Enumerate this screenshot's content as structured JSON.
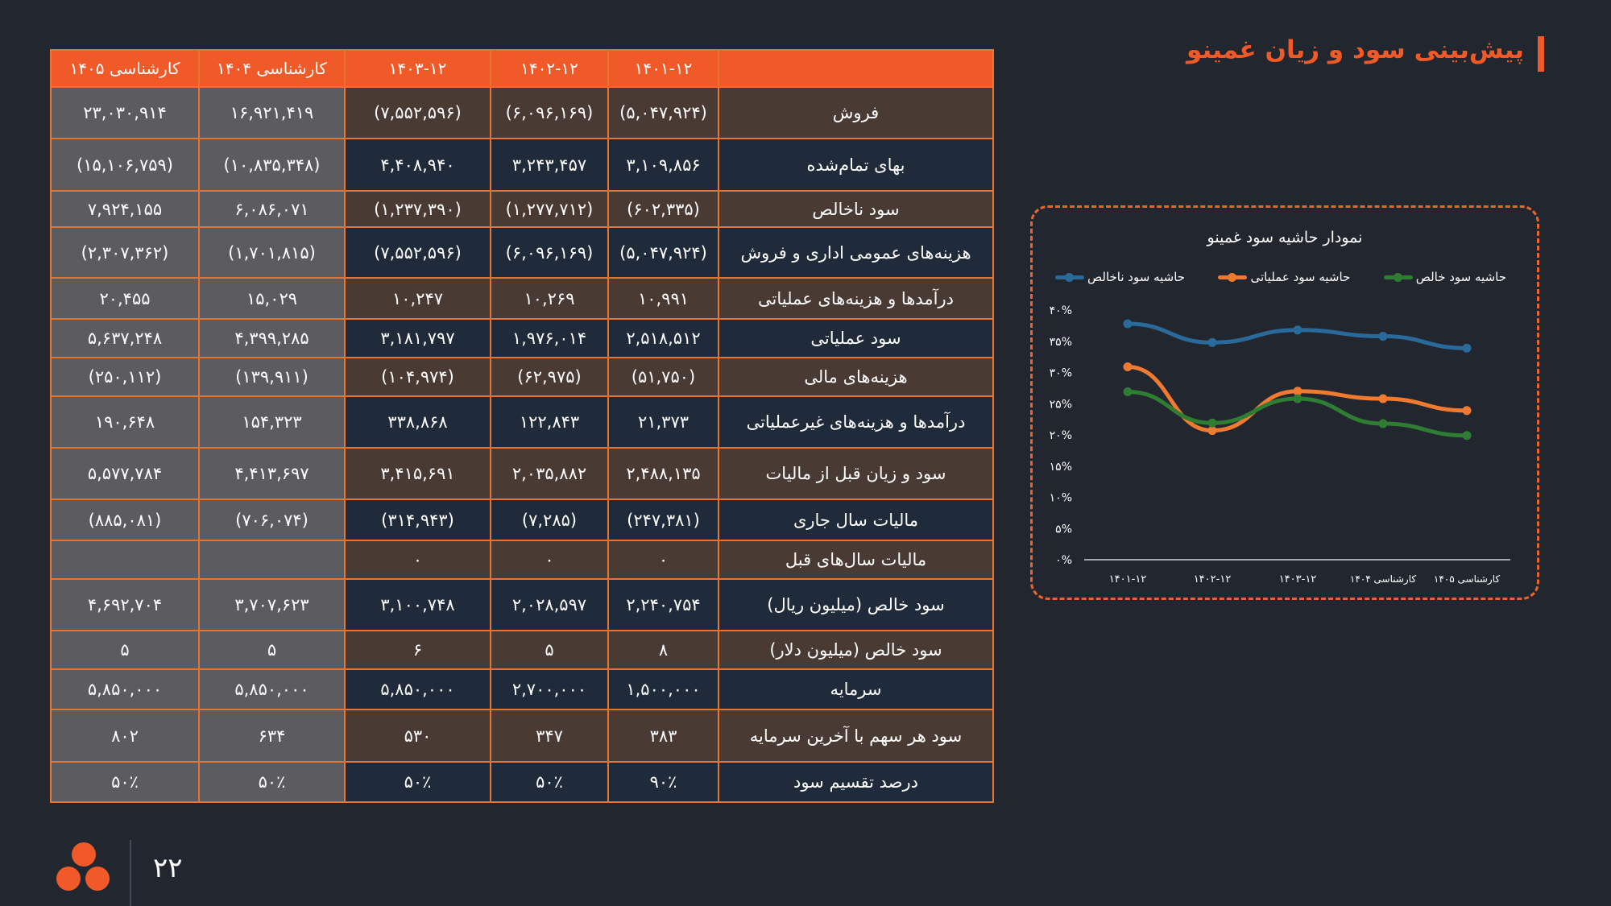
{
  "title": "پیش‌بینی سود و زیان غمینو",
  "table": {
    "headers": [
      "",
      "۱۴۰۱-۱۲",
      "۱۴۰۲-۱۲",
      "۱۴۰۳-۱۲",
      "کارشناسی ۱۴۰۴",
      "کارشناسی ۱۴۰۵"
    ],
    "rows": [
      {
        "label": "فروش",
        "values": [
          "(۵,۰۴۷,۹۲۴)",
          "(۶,۰۹۶,۱۶۹)",
          "(۷,۵۵۲,۵۹۶)",
          "۱۶,۹۲۱,۴۱۹",
          "۲۳,۰۳۰,۹۱۴"
        ]
      },
      {
        "label": "بهای تمام‌شده",
        "values": [
          "۳,۱۰۹,۸۵۶",
          "۳,۲۴۳,۴۵۷",
          "۴,۴۰۸,۹۴۰",
          "(۱۰,۸۳۵,۳۴۸)",
          "(۱۵,۱۰۶,۷۵۹)"
        ]
      },
      {
        "label": "سود ناخالص",
        "values": [
          "(۶۰۲,۳۳۵)",
          "(۱,۲۷۷,۷۱۲)",
          "(۱,۲۳۷,۳۹۰)",
          "۶,۰۸۶,۰۷۱",
          "۷,۹۲۴,۱۵۵"
        ]
      },
      {
        "label": "هزینه‌های عمومی اداری و فروش",
        "values": [
          "(۵,۰۴۷,۹۲۴)",
          "(۶,۰۹۶,۱۶۹)",
          "(۷,۵۵۲,۵۹۶)",
          "(۱,۷۰۱,۸۱۵)",
          "(۲,۳۰۷,۳۶۲)"
        ]
      },
      {
        "label": "درآمدها و هزینه‌های عملیاتی",
        "values": [
          "۱۰,۹۹۱",
          "۱۰,۲۶۹",
          "۱۰,۲۴۷",
          "۱۵,۰۲۹",
          "۲۰,۴۵۵"
        ]
      },
      {
        "label": "سود عملیاتی",
        "values": [
          "۲,۵۱۸,۵۱۲",
          "۱,۹۷۶,۰۱۴",
          "۳,۱۸۱,۷۹۷",
          "۴,۳۹۹,۲۸۵",
          "۵,۶۳۷,۲۴۸"
        ]
      },
      {
        "label": "هزینه‌های مالی",
        "values": [
          "(۵۱,۷۵۰)",
          "(۶۲,۹۷۵)",
          "(۱۰۴,۹۷۴)",
          "(۱۳۹,۹۱۱)",
          "(۲۵۰,۱۱۲)"
        ]
      },
      {
        "label": "درآمدها و هزینه‌های غیرعملیاتی",
        "values": [
          "۲۱,۳۷۳",
          "۱۲۲,۸۴۳",
          "۳۳۸,۸۶۸",
          "۱۵۴,۳۲۳",
          "۱۹۰,۶۴۸"
        ]
      },
      {
        "label": "سود و زیان قبل از مالیات",
        "values": [
          "۲,۴۸۸,۱۳۵",
          "۲,۰۳۵,۸۸۲",
          "۳,۴۱۵,۶۹۱",
          "۴,۴۱۳,۶۹۷",
          "۵,۵۷۷,۷۸۴"
        ]
      },
      {
        "label": "مالیات سال جاری",
        "values": [
          "(۲۴۷,۳۸۱)",
          "(۷,۲۸۵)",
          "(۳۱۴,۹۴۳)",
          "(۷۰۶,۰۷۴)",
          "(۸۸۵,۰۸۱)"
        ]
      },
      {
        "label": "مالیات سال‌های قبل",
        "values": [
          "۰",
          "۰",
          "۰",
          "",
          ""
        ]
      },
      {
        "label": "سود خالص (میلیون ریال)",
        "values": [
          "۲,۲۴۰,۷۵۴",
          "۲,۰۲۸,۵۹۷",
          "۳,۱۰۰,۷۴۸",
          "۳,۷۰۷,۶۲۳",
          "۴,۶۹۲,۷۰۴"
        ]
      },
      {
        "label": "سود خالص (میلیون دلار)",
        "values": [
          "۸",
          "۵",
          "۶",
          "۵",
          "۵"
        ]
      },
      {
        "label": "سرمایه",
        "values": [
          "۱,۵۰۰,۰۰۰",
          "۲,۷۰۰,۰۰۰",
          "۵,۸۵۰,۰۰۰",
          "۵,۸۵۰,۰۰۰",
          "۵,۸۵۰,۰۰۰"
        ]
      },
      {
        "label": "سود هر سهم با آخرین سرمایه",
        "values": [
          "۳۸۳",
          "۳۴۷",
          "۵۳۰",
          "۶۳۴",
          "۸۰۲"
        ]
      },
      {
        "label": "درصد تقسیم سود",
        "values": [
          "۹۰٪",
          "۵۰٪",
          "۵۰٪",
          "۵۰٪",
          "۵۰٪"
        ]
      }
    ]
  },
  "colors": {
    "accent": "#f05a28",
    "background": "#22262f",
    "row_brown": "#4a3a34",
    "row_navy": "#1f2a3a",
    "forecast_gray": "#5c5c60"
  },
  "chart_data": {
    "type": "line",
    "title": "نمودار حاشیه سود غمینو",
    "categories": [
      "۱۴۰۱-۱۲",
      "۱۴۰۲-۱۲",
      "۱۴۰۳-۱۲",
      "کارشناسی ۱۴۰۴",
      "کارشناسی ۱۴۰۵"
    ],
    "ytick_labels": [
      "۰%",
      "۵%",
      "۱۰%",
      "۱۵%",
      "۲۰%",
      "۲۵%",
      "۳۰%",
      "۳۵%",
      "۴۰%"
    ],
    "ylim": [
      0,
      40
    ],
    "grid": false,
    "legend": "top",
    "series": [
      {
        "name": "حاشیه سود ناخالص",
        "color": "#2a6a9a",
        "values": [
          37.8,
          34.8,
          36.8,
          35.8,
          33.9
        ]
      },
      {
        "name": "حاشیه سود عملیاتی",
        "color": "#f07a30",
        "values": [
          30.9,
          20.7,
          27.0,
          25.8,
          23.9
        ]
      },
      {
        "name": "حاشیه سود خالص",
        "color": "#2e7d32",
        "values": [
          26.9,
          21.9,
          25.8,
          21.8,
          19.9
        ]
      }
    ]
  },
  "footer": {
    "page_number": "۲۲",
    "logo_icon": "three-circles-logo"
  }
}
